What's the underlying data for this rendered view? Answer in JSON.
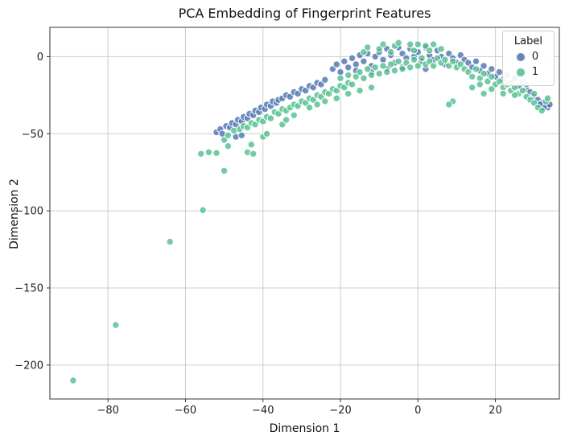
{
  "chart_data": {
    "type": "scatter",
    "title": "PCA Embedding of Fingerprint Features",
    "xlabel": "Dimension 1",
    "ylabel": "Dimension 2",
    "xlim": [
      -95,
      36.5
    ],
    "ylim": [
      -222,
      19
    ],
    "xticks": [
      -80,
      -60,
      -40,
      -20,
      0,
      20
    ],
    "yticks": [
      0,
      -50,
      -100,
      -150,
      -200
    ],
    "grid": true,
    "legend": {
      "title": "Label",
      "position": "upper right"
    },
    "marker": {
      "radius": 4.2,
      "edge_color": "#ffffff",
      "fill_opacity": 0.8
    },
    "colors": {
      "grid": "#cccccc",
      "spine": "#555555",
      "tick": "#333333"
    },
    "series": [
      {
        "name": "0",
        "color": "#4c72b0",
        "points": [
          [
            -52,
            -49
          ],
          [
            -51,
            -47
          ],
          [
            -50.5,
            -50
          ],
          [
            -49.5,
            -45
          ],
          [
            -48.5,
            -46
          ],
          [
            -48,
            -43
          ],
          [
            -47,
            -44
          ],
          [
            -46.5,
            -41
          ],
          [
            -45.5,
            -42
          ],
          [
            -45,
            -39
          ],
          [
            -44,
            -40
          ],
          [
            -43.5,
            -37
          ],
          [
            -42.5,
            -38
          ],
          [
            -42,
            -35
          ],
          [
            -41,
            -36
          ],
          [
            -40.5,
            -33
          ],
          [
            -39.5,
            -34
          ],
          [
            -39,
            -31
          ],
          [
            -38,
            -32
          ],
          [
            -37.5,
            -29
          ],
          [
            -36.5,
            -30
          ],
          [
            -36,
            -28
          ],
          [
            -35,
            -27
          ],
          [
            -34,
            -25
          ],
          [
            -33,
            -26
          ],
          [
            -32,
            -23
          ],
          [
            -31,
            -24
          ],
          [
            -30,
            -21
          ],
          [
            -29,
            -22
          ],
          [
            -28,
            -19
          ],
          [
            -27,
            -20
          ],
          [
            -26,
            -17
          ],
          [
            -25,
            -18
          ],
          [
            -24,
            -15
          ],
          [
            -47,
            -52
          ],
          [
            -45.5,
            -51
          ],
          [
            -22,
            -8
          ],
          [
            -21,
            -5
          ],
          [
            -20,
            -10
          ],
          [
            -19,
            -3
          ],
          [
            -18,
            -7
          ],
          [
            -17,
            -1
          ],
          [
            -16,
            -5
          ],
          [
            -15,
            1
          ],
          [
            -14,
            -3
          ],
          [
            -13,
            2
          ],
          [
            -12,
            -6
          ],
          [
            -11,
            0
          ],
          [
            -10,
            3
          ],
          [
            -9,
            -2
          ],
          [
            -8,
            5
          ],
          [
            -7,
            1
          ],
          [
            -6,
            -4
          ],
          [
            -5,
            6
          ],
          [
            -4,
            2
          ],
          [
            -3,
            -1
          ],
          [
            -2,
            5
          ],
          [
            -1,
            0
          ],
          [
            0,
            3
          ],
          [
            1,
            -3
          ],
          [
            2,
            6
          ],
          [
            3,
            1
          ],
          [
            4,
            -2
          ],
          [
            5,
            4
          ],
          [
            6,
            0
          ],
          [
            7,
            -5
          ],
          [
            8,
            2
          ],
          [
            9,
            -1
          ],
          [
            10,
            -4
          ],
          [
            11,
            1
          ],
          [
            12,
            -2
          ],
          [
            -16,
            -9
          ],
          [
            -12,
            -10
          ],
          [
            -8,
            -8
          ],
          [
            -4,
            -7
          ],
          [
            2,
            -8
          ],
          [
            13,
            -4
          ],
          [
            14,
            -7
          ],
          [
            15,
            -3
          ],
          [
            16,
            -9
          ],
          [
            17,
            -6
          ],
          [
            18,
            -11
          ],
          [
            19,
            -8
          ],
          [
            20,
            -13
          ],
          [
            21,
            -10
          ],
          [
            22,
            -15
          ],
          [
            23,
            -12
          ],
          [
            24,
            -17
          ],
          [
            25,
            -14
          ],
          [
            26,
            -19
          ],
          [
            27,
            -16
          ],
          [
            28,
            -21
          ],
          [
            29,
            -23
          ],
          [
            30,
            -26
          ],
          [
            31,
            -28
          ],
          [
            32,
            -30
          ],
          [
            33,
            -32
          ],
          [
            33.5,
            -33
          ],
          [
            34,
            -31
          ],
          [
            32.5,
            -33
          ],
          [
            31.5,
            -31
          ]
        ]
      },
      {
        "name": "1",
        "color": "#4fbe8b",
        "points": [
          [
            -89,
            -210
          ],
          [
            -78,
            -174
          ],
          [
            -64,
            -120
          ],
          [
            -55.5,
            -99.5
          ],
          [
            -50,
            -74
          ],
          [
            -56,
            -63
          ],
          [
            -54,
            -62
          ],
          [
            -52,
            -62.5
          ],
          [
            -44,
            -62
          ],
          [
            -42.5,
            -63
          ],
          [
            -43,
            -57
          ],
          [
            -40,
            -52
          ],
          [
            -39,
            -50
          ],
          [
            -50,
            -54
          ],
          [
            -49,
            -51
          ],
          [
            -47.5,
            -48
          ],
          [
            -46,
            -47
          ],
          [
            -45,
            -45
          ],
          [
            -44,
            -46
          ],
          [
            -43,
            -43
          ],
          [
            -42,
            -44
          ],
          [
            -41,
            -41
          ],
          [
            -40,
            -42
          ],
          [
            -39,
            -39
          ],
          [
            -38,
            -40
          ],
          [
            -37,
            -36
          ],
          [
            -36,
            -37
          ],
          [
            -35,
            -34
          ],
          [
            -34,
            -35
          ],
          [
            -33,
            -33
          ],
          [
            -32,
            -31
          ],
          [
            -31,
            -32
          ],
          [
            -30,
            -29
          ],
          [
            -29,
            -30
          ],
          [
            -28,
            -27
          ],
          [
            -27,
            -28
          ],
          [
            -26,
            -25
          ],
          [
            -25,
            -26
          ],
          [
            -24,
            -23
          ],
          [
            -23,
            -24
          ],
          [
            -22,
            -21
          ],
          [
            -21,
            -22
          ],
          [
            -20,
            -19
          ],
          [
            -19,
            -20
          ],
          [
            -18,
            -17
          ],
          [
            -17,
            -18
          ],
          [
            -35,
            -44
          ],
          [
            -32,
            -38
          ],
          [
            -28,
            -33
          ],
          [
            -24,
            -29
          ],
          [
            -21,
            -27
          ],
          [
            -18,
            -24
          ],
          [
            -15,
            -22
          ],
          [
            -12,
            -20
          ],
          [
            -34,
            -41
          ],
          [
            -26,
            -31
          ],
          [
            -49,
            -58
          ],
          [
            -16,
            -13
          ],
          [
            -15,
            -10
          ],
          [
            -14,
            -14
          ],
          [
            -13,
            -8
          ],
          [
            -12,
            -12
          ],
          [
            -11,
            -7
          ],
          [
            -10,
            -11
          ],
          [
            -9,
            -6
          ],
          [
            -8,
            -10
          ],
          [
            -7,
            -5
          ],
          [
            -6,
            -9
          ],
          [
            -5,
            -3
          ],
          [
            -4,
            -8
          ],
          [
            -3,
            -4
          ],
          [
            -2,
            -7
          ],
          [
            -1,
            -2
          ],
          [
            0,
            -6
          ],
          [
            1,
            -1
          ],
          [
            2,
            -5
          ],
          [
            3,
            -3
          ],
          [
            4,
            -6
          ],
          [
            5,
            -1
          ],
          [
            6,
            -4
          ],
          [
            7,
            -2
          ],
          [
            8,
            -6
          ],
          [
            9,
            -3
          ],
          [
            10,
            -7
          ],
          [
            11,
            -5
          ],
          [
            12,
            -8
          ],
          [
            -14,
            3
          ],
          [
            -10,
            5
          ],
          [
            -6,
            7
          ],
          [
            -2,
            8
          ],
          [
            2,
            7
          ],
          [
            6,
            5
          ],
          [
            -18,
            -12
          ],
          [
            -20,
            -14
          ],
          [
            -13,
            6
          ],
          [
            -9,
            8
          ],
          [
            -5,
            9
          ],
          [
            0,
            8
          ],
          [
            4,
            8
          ],
          [
            -1,
            4
          ],
          [
            3,
            4
          ],
          [
            -7,
            3
          ],
          [
            13,
            -10
          ],
          [
            14,
            -13
          ],
          [
            15,
            -8
          ],
          [
            16,
            -14
          ],
          [
            17,
            -11
          ],
          [
            18,
            -16
          ],
          [
            19,
            -13
          ],
          [
            20,
            -18
          ],
          [
            21,
            -16
          ],
          [
            22,
            -20
          ],
          [
            23,
            -18
          ],
          [
            24,
            -22
          ],
          [
            25,
            -20
          ],
          [
            26,
            -24
          ],
          [
            27,
            -22
          ],
          [
            28,
            -26
          ],
          [
            29,
            -28
          ],
          [
            30,
            -30
          ],
          [
            31,
            -33
          ],
          [
            32,
            -35
          ],
          [
            33,
            -29
          ],
          [
            28,
            -18
          ],
          [
            25,
            -25
          ],
          [
            22,
            -24
          ],
          [
            19,
            -21
          ],
          [
            16,
            -18
          ],
          [
            14,
            -20
          ],
          [
            9,
            -29
          ],
          [
            8,
            -31
          ],
          [
            17,
            -24
          ],
          [
            33.5,
            -27
          ],
          [
            30,
            -24
          ]
        ]
      }
    ]
  }
}
